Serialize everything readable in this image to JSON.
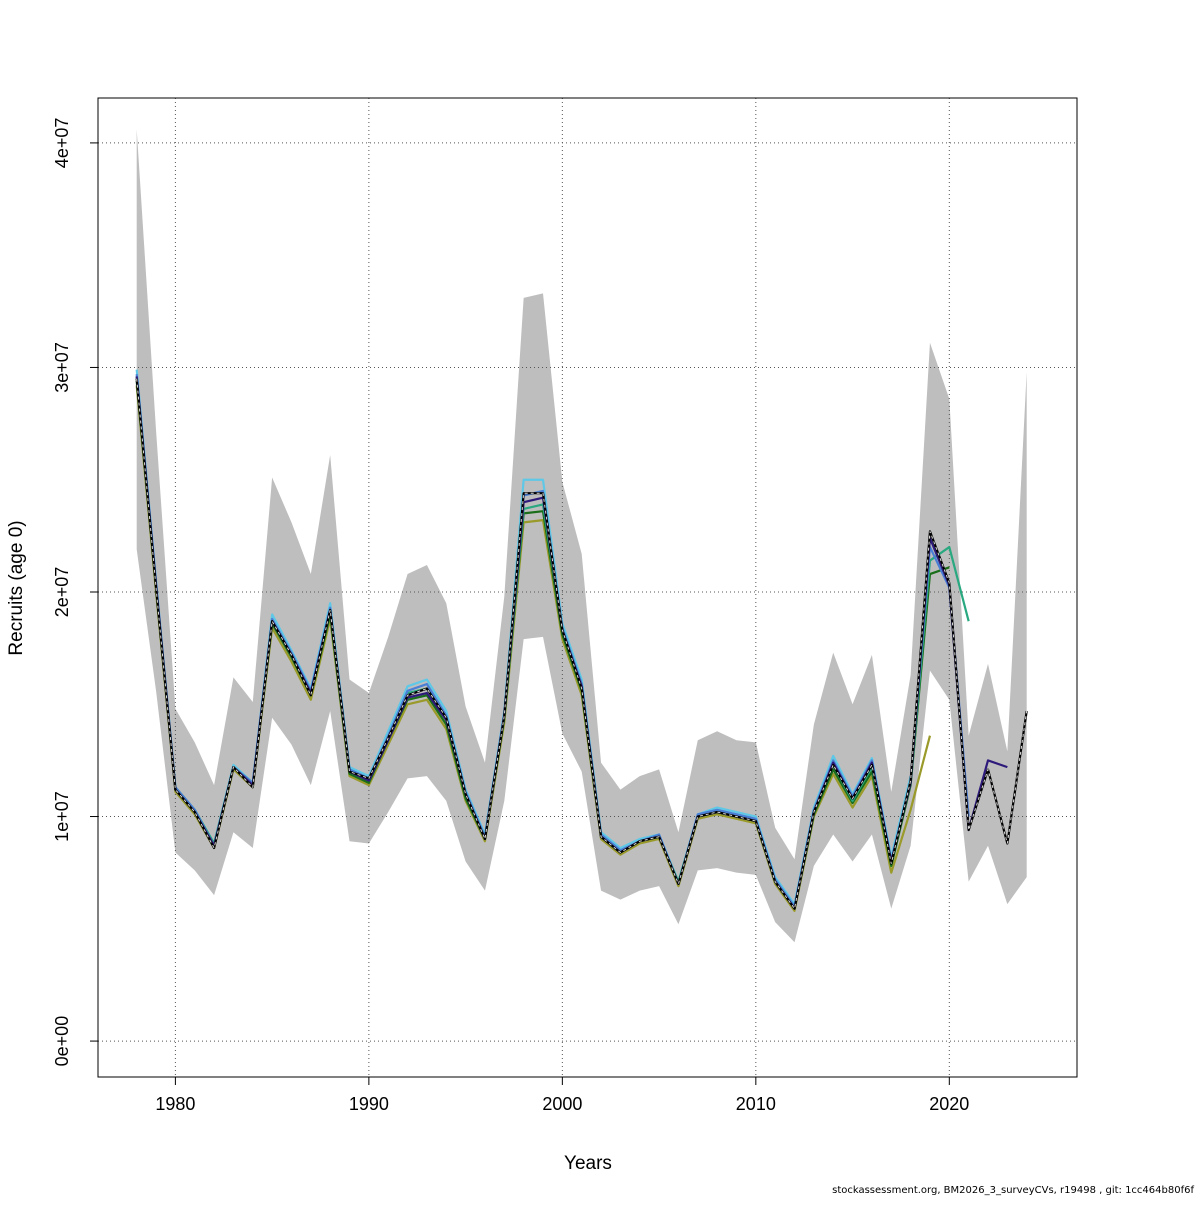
{
  "chart_data": {
    "type": "line",
    "title": "",
    "xlabel": "Years",
    "ylabel": "Recruits (age 0)",
    "xlim": [
      1976,
      2026.6
    ],
    "ylim": [
      -1600000,
      42000000
    ],
    "x_ticks": [
      1980,
      1990,
      2000,
      2010,
      2020
    ],
    "x_tick_labels": [
      "1980",
      "1990",
      "2000",
      "2010",
      "2020"
    ],
    "y_ticks": [
      0,
      10000000,
      20000000,
      30000000,
      40000000
    ],
    "y_tick_labels": [
      "0e+00",
      "1e+07",
      "2e+07",
      "3e+07",
      "4e+07"
    ],
    "grid": true,
    "legend": "none",
    "colors": {
      "band": "#bebebe",
      "grid": "#555555",
      "base_dash": "#d9d9d9"
    },
    "confidence_band": {
      "x": [
        1978,
        1979,
        1980,
        1981,
        1982,
        1983,
        1984,
        1985,
        1986,
        1987,
        1988,
        1989,
        1990,
        1991,
        1992,
        1993,
        1994,
        1995,
        1996,
        1997,
        1998,
        1999,
        2000,
        2001,
        2002,
        2003,
        2004,
        2005,
        2006,
        2007,
        2008,
        2009,
        2010,
        2011,
        2012,
        2013,
        2014,
        2015,
        2016,
        2017,
        2018,
        2019,
        2020,
        2021,
        2022,
        2023,
        2024
      ],
      "lower": [
        21900000,
        15600000,
        8400000,
        7600000,
        6500000,
        9300000,
        8600000,
        14400000,
        13200000,
        11400000,
        14700000,
        8900000,
        8800000,
        10200000,
        11700000,
        11800000,
        10700000,
        8000000,
        6700000,
        10700000,
        17900000,
        18000000,
        13700000,
        12000000,
        6700000,
        6300000,
        6700000,
        6900000,
        5200000,
        7600000,
        7700000,
        7500000,
        7400000,
        5300000,
        4400000,
        7800000,
        9200000,
        8000000,
        9200000,
        5900000,
        8700000,
        16500000,
        15200000,
        7100000,
        8700000,
        6100000,
        7300000
      ],
      "upper": [
        40600000,
        27200000,
        14800000,
        13300000,
        11400000,
        16200000,
        15100000,
        25100000,
        23100000,
        20800000,
        26100000,
        16100000,
        15500000,
        18000000,
        20800000,
        21200000,
        19500000,
        14900000,
        12400000,
        19800000,
        33100000,
        33300000,
        24900000,
        21700000,
        12400000,
        11200000,
        11800000,
        12100000,
        9300000,
        13400000,
        13800000,
        13400000,
        13300000,
        9500000,
        8100000,
        14100000,
        17300000,
        15000000,
        17200000,
        11100000,
        16300000,
        31100000,
        28600000,
        13600000,
        16800000,
        12900000,
        29800000
      ]
    },
    "series": [
      {
        "color": "#000000",
        "dashed_overlay": true,
        "x": [
          1978,
          1979,
          1980,
          1981,
          1982,
          1983,
          1984,
          1985,
          1986,
          1987,
          1988,
          1989,
          1990,
          1991,
          1992,
          1993,
          1994,
          1995,
          1996,
          1997,
          1998,
          1999,
          2000,
          2001,
          2002,
          2003,
          2004,
          2005,
          2006,
          2007,
          2008,
          2009,
          2010,
          2011,
          2012,
          2013,
          2014,
          2015,
          2016,
          2017,
          2018,
          2019,
          2020,
          2021,
          2022,
          2023,
          2024
        ],
        "values": [
          29500000,
          20200000,
          11200000,
          10200000,
          8600000,
          12200000,
          11300000,
          18700000,
          17200000,
          15400000,
          19200000,
          12000000,
          11700000,
          13500000,
          15400000,
          15700000,
          14400000,
          11000000,
          9000000,
          14500000,
          24400000,
          24400000,
          18300000,
          15700000,
          9100000,
          8400000,
          8900000,
          9100000,
          7000000,
          10000000,
          10200000,
          10000000,
          9800000,
          7100000,
          5900000,
          10200000,
          12300000,
          10800000,
          12300000,
          7900000,
          11600000,
          22700000,
          20400000,
          9400000,
          12100000,
          8800000,
          14700000
        ]
      },
      {
        "color": "#2e1a7a",
        "x": [
          1978,
          1979,
          1980,
          1981,
          1982,
          1983,
          1984,
          1985,
          1986,
          1987,
          1988,
          1989,
          1990,
          1991,
          1992,
          1993,
          1994,
          1995,
          1996,
          1997,
          1998,
          1999,
          2000,
          2001,
          2002,
          2003,
          2004,
          2005,
          2006,
          2007,
          2008,
          2009,
          2010,
          2011,
          2012,
          2013,
          2014,
          2015,
          2016,
          2017,
          2018,
          2019,
          2020,
          2021,
          2022,
          2023
        ],
        "values": [
          29600000,
          20300000,
          11200000,
          10200000,
          8700000,
          12200000,
          11400000,
          18700000,
          17200000,
          15500000,
          19200000,
          12000000,
          11600000,
          13400000,
          15300000,
          15500000,
          14300000,
          11000000,
          9000000,
          14500000,
          24000000,
          24200000,
          18300000,
          15800000,
          9100000,
          8400000,
          8900000,
          9100000,
          7000000,
          10000000,
          10200000,
          10000000,
          9800000,
          7100000,
          5900000,
          10200000,
          12400000,
          10800000,
          12400000,
          8000000,
          11500000,
          22400000,
          20300000,
          9400000,
          12500000,
          12200000
        ]
      },
      {
        "color": "#4a7fd6",
        "x": [
          1978,
          1979,
          1980,
          1981,
          1982,
          1983,
          1984,
          1985,
          1986,
          1987,
          1988,
          1989,
          1990,
          1991,
          1992,
          1993,
          1994,
          1995,
          1996,
          1997,
          1998,
          1999,
          2000,
          2001,
          2002,
          2003,
          2004,
          2005,
          2006,
          2007,
          2008,
          2009,
          2010,
          2011,
          2012,
          2013,
          2014,
          2015,
          2016,
          2017,
          2018,
          2019,
          2020,
          2021
        ],
        "values": [
          29700000,
          20400000,
          11300000,
          10300000,
          8700000,
          12200000,
          11500000,
          18800000,
          17300000,
          15600000,
          19300000,
          12100000,
          11700000,
          13600000,
          15600000,
          15900000,
          14500000,
          11100000,
          9100000,
          14600000,
          24300000,
          24500000,
          18400000,
          15900000,
          9200000,
          8500000,
          8900000,
          9200000,
          7000000,
          10100000,
          10300000,
          10100000,
          9900000,
          7200000,
          6000000,
          10300000,
          12500000,
          10900000,
          12500000,
          8000000,
          11600000,
          22000000,
          20200000,
          10000000
        ]
      },
      {
        "color": "#2aa880",
        "x": [
          1978,
          1979,
          1980,
          1981,
          1982,
          1983,
          1984,
          1985,
          1986,
          1987,
          1988,
          1989,
          1990,
          1991,
          1992,
          1993,
          1994,
          1995,
          1996,
          1997,
          1998,
          1999,
          2000,
          2001,
          2002,
          2003,
          2004,
          2005,
          2006,
          2007,
          2008,
          2009,
          2010,
          2011,
          2012,
          2013,
          2014,
          2015,
          2016,
          2017,
          2018,
          2019,
          2020,
          2021
        ],
        "values": [
          29600000,
          20300000,
          11300000,
          10300000,
          8800000,
          12200000,
          11500000,
          18700000,
          17200000,
          15500000,
          19200000,
          12100000,
          11600000,
          13500000,
          15500000,
          15700000,
          14400000,
          11000000,
          9100000,
          14500000,
          23700000,
          23900000,
          18400000,
          15900000,
          9200000,
          8400000,
          8900000,
          9100000,
          7100000,
          10000000,
          10200000,
          10000000,
          9800000,
          7100000,
          6000000,
          10200000,
          12300000,
          10700000,
          12200000,
          8000000,
          11500000,
          21400000,
          22000000,
          18700000
        ]
      },
      {
        "color": "#1a6e1a",
        "x": [
          1978,
          1979,
          1980,
          1981,
          1982,
          1983,
          1984,
          1985,
          1986,
          1987,
          1988,
          1989,
          1990,
          1991,
          1992,
          1993,
          1994,
          1995,
          1996,
          1997,
          1998,
          1999,
          2000,
          2001,
          2002,
          2003,
          2004,
          2005,
          2006,
          2007,
          2008,
          2009,
          2010,
          2011,
          2012,
          2013,
          2014,
          2015,
          2016,
          2017,
          2018,
          2019,
          2020
        ],
        "values": [
          29400000,
          20200000,
          11200000,
          10200000,
          8700000,
          12200000,
          11400000,
          18600000,
          17100000,
          15400000,
          19000000,
          11900000,
          11500000,
          13400000,
          15200000,
          15400000,
          14100000,
          10800000,
          9000000,
          14400000,
          23500000,
          23600000,
          18100000,
          15600000,
          9100000,
          8400000,
          8900000,
          9100000,
          7000000,
          10000000,
          10200000,
          10000000,
          9800000,
          7100000,
          5900000,
          10100000,
          12100000,
          10600000,
          12000000,
          7800000,
          11400000,
          20800000,
          21100000
        ]
      },
      {
        "color": "#9a9a2a",
        "x": [
          1978,
          1979,
          1980,
          1981,
          1982,
          1983,
          1984,
          1985,
          1986,
          1987,
          1988,
          1989,
          1990,
          1991,
          1992,
          1993,
          1994,
          1995,
          1996,
          1997,
          1998,
          1999,
          2000,
          2001,
          2002,
          2003,
          2004,
          2005,
          2006,
          2007,
          2008,
          2009,
          2010,
          2011,
          2012,
          2013,
          2014,
          2015,
          2016,
          2017,
          2018,
          2019
        ],
        "values": [
          29200000,
          20000000,
          11100000,
          10100000,
          8600000,
          12100000,
          11300000,
          18400000,
          16900000,
          15200000,
          18800000,
          11800000,
          11400000,
          13200000,
          15000000,
          15200000,
          13900000,
          10700000,
          8900000,
          14200000,
          23100000,
          23200000,
          17900000,
          15400000,
          9000000,
          8300000,
          8800000,
          9000000,
          6900000,
          9900000,
          10100000,
          9900000,
          9700000,
          7000000,
          5800000,
          10000000,
          11900000,
          10400000,
          11800000,
          7500000,
          10300000,
          13600000
        ]
      },
      {
        "color": "#5fc8e6",
        "x": [
          1978,
          1979,
          1980,
          1981,
          1982,
          1983,
          1984,
          1985,
          1986,
          1987,
          1988,
          1989,
          1990,
          1991,
          1992,
          1993,
          1994,
          1995,
          1996,
          1997,
          1998,
          1999,
          2000,
          2001,
          2002,
          2003,
          2004,
          2005,
          2006,
          2007,
          2008,
          2009,
          2010,
          2011,
          2012,
          2013,
          2014,
          2015,
          2016,
          2017,
          2018
        ],
        "values": [
          29900000,
          20500000,
          11300000,
          10300000,
          8800000,
          12300000,
          11500000,
          19000000,
          17400000,
          15700000,
          19500000,
          12200000,
          11800000,
          13800000,
          15800000,
          16100000,
          14700000,
          11200000,
          9200000,
          14700000,
          25000000,
          25000000,
          18600000,
          16100000,
          9300000,
          8600000,
          9000000,
          9200000,
          7100000,
          10100000,
          10400000,
          10200000,
          10000000,
          7300000,
          6100000,
          10400000,
          12700000,
          11000000,
          12600000,
          8200000,
          11800000
        ]
      }
    ]
  },
  "footer": "stockassessment.org, BM2026_3_surveyCVs, r19498 , git: 1cc464b80f6f"
}
